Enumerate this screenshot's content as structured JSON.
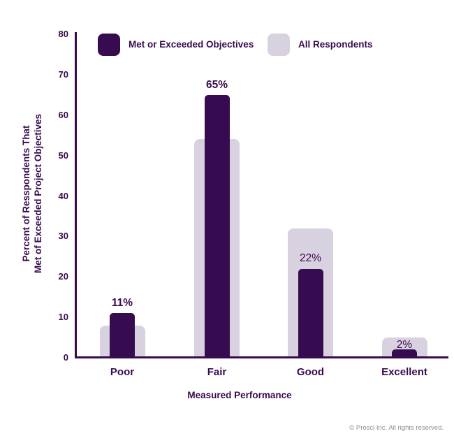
{
  "colors": {
    "dark_purple": "#370B4F",
    "light_lavender": "#D8D1E0",
    "footer_gray": "#8C8C8C",
    "background": "#FFFFFF"
  },
  "legend": {
    "items": [
      {
        "label": "Met or Exceeded Objectives",
        "color": "#370B4F"
      },
      {
        "label": "All Respondents",
        "color": "#D8D1E0"
      }
    ]
  },
  "footer": {
    "copyright": "© Prosci Inc. All rights reserved."
  },
  "chart_data": {
    "type": "bar",
    "title": "",
    "categories": [
      "Poor",
      "Fair",
      "Good",
      "Excellent"
    ],
    "series": [
      {
        "name": "Met or Exceeded Objectives",
        "color": "#370B4F",
        "values": [
          11,
          65,
          22,
          2
        ],
        "labels": [
          "11%",
          "65%",
          "22%",
          "2%"
        ]
      },
      {
        "name": "All Respondents",
        "color": "#D8D1E0",
        "values": [
          8,
          54,
          32,
          5
        ],
        "labels": []
      }
    ],
    "xlabel": "Measured Performance",
    "ylabel_line1": "Percent of Resspondents That",
    "ylabel_line2": "Met of Exceeded Project Objectives",
    "ylim": [
      0,
      80
    ],
    "yticks": [
      0,
      10,
      20,
      30,
      40,
      50,
      60,
      70,
      80
    ],
    "grid": false,
    "legend_position": "top",
    "bar_style": "overlapping"
  }
}
